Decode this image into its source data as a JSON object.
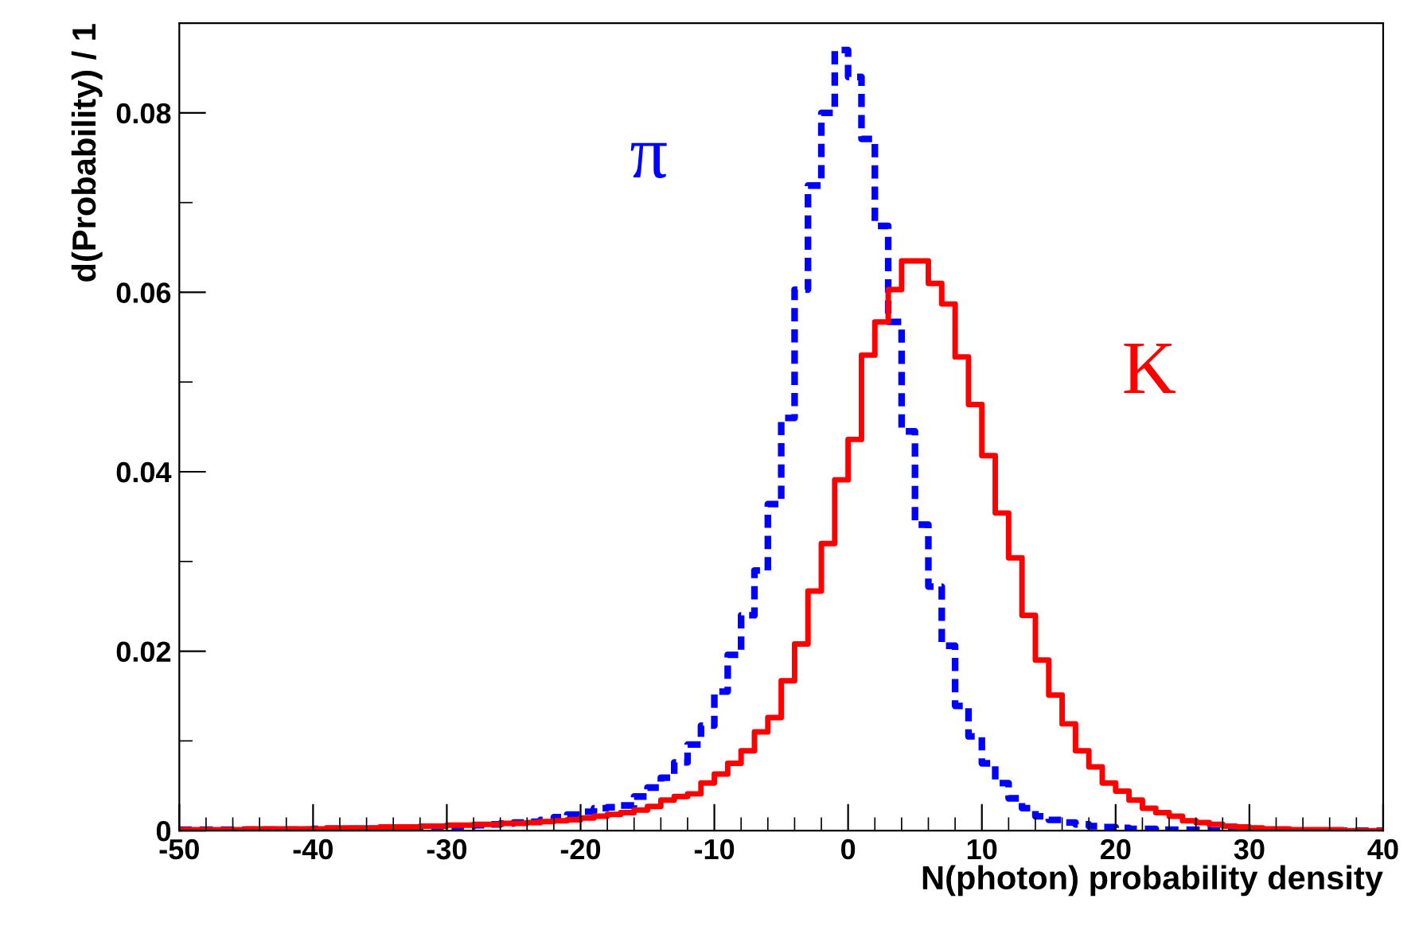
{
  "chart_data": {
    "type": "histogram",
    "xlabel": "N(photon) probability density",
    "ylabel": "d(Probability) / 1",
    "bins": [
      -50,
      -49,
      -48,
      -47,
      -46,
      -45,
      -44,
      -43,
      -42,
      -41,
      -40,
      -39,
      -38,
      -37,
      -36,
      -35,
      -34,
      -33,
      -32,
      -31,
      -30,
      -29,
      -28,
      -27,
      -26,
      -25,
      -24,
      -23,
      -22,
      -21,
      -20,
      -19,
      -18,
      -17,
      -16,
      -15,
      -14,
      -13,
      -12,
      -11,
      -10,
      -9,
      -8,
      -7,
      -6,
      -5,
      -4,
      -3,
      -2,
      -1,
      0,
      1,
      2,
      3,
      4,
      5,
      6,
      7,
      8,
      9,
      10,
      11,
      12,
      13,
      14,
      15,
      16,
      17,
      18,
      19,
      20,
      21,
      22,
      23,
      24,
      25,
      26,
      27,
      28,
      29,
      30,
      31,
      32,
      33,
      34,
      35,
      36,
      37,
      38,
      39,
      40
    ],
    "series": [
      {
        "name": "π",
        "color": "#0000ff",
        "line_style": "dashed",
        "values": [
          0.0001,
          0.0001,
          0.0001,
          0.0001,
          0.0001,
          0.0001,
          0.0001,
          0.0001,
          0.0001,
          0.0001,
          0.0002,
          0.0002,
          0.0002,
          0.0002,
          0.0002,
          0.0002,
          0.0003,
          0.0003,
          0.0003,
          0.0004,
          0.0004,
          0.0005,
          0.0006,
          0.0007,
          0.0008,
          0.0009,
          0.001,
          0.0012,
          0.0015,
          0.0018,
          0.0021,
          0.0025,
          0.0026,
          0.0028,
          0.0038,
          0.0048,
          0.0059,
          0.0076,
          0.0096,
          0.0117,
          0.0155,
          0.0196,
          0.024,
          0.029,
          0.0364,
          0.046,
          0.0603,
          0.0719,
          0.08,
          0.087,
          0.084,
          0.0771,
          0.0674,
          0.0567,
          0.0445,
          0.0341,
          0.0272,
          0.0206,
          0.0139,
          0.0105,
          0.0075,
          0.0053,
          0.0036,
          0.0025,
          0.0016,
          0.0012,
          0.0009,
          0.0007,
          0.0005,
          0.0004,
          0.0003,
          0.0002,
          0.0002,
          0.0001,
          0.0001,
          0.0001,
          0.0001,
          0,
          0,
          0,
          0,
          0,
          0,
          0,
          0,
          0,
          0,
          0,
          0,
          0
        ]
      },
      {
        "name": "K",
        "color": "#ff0000",
        "line_style": "solid",
        "values": [
          0.0001,
          0.0001,
          0.0001,
          0.0001,
          0.0001,
          0.0002,
          0.0002,
          0.0002,
          0.0002,
          0.0002,
          0.0002,
          0.0003,
          0.0003,
          0.0003,
          0.0003,
          0.0004,
          0.0004,
          0.0004,
          0.0005,
          0.0005,
          0.0006,
          0.0006,
          0.0007,
          0.0007,
          0.0008,
          0.0008,
          0.0009,
          0.001,
          0.0011,
          0.0012,
          0.0014,
          0.0016,
          0.0018,
          0.002,
          0.0023,
          0.0027,
          0.0034,
          0.0038,
          0.0041,
          0.0053,
          0.0063,
          0.0075,
          0.0089,
          0.011,
          0.0126,
          0.0167,
          0.0208,
          0.0267,
          0.032,
          0.0391,
          0.0436,
          0.053,
          0.0567,
          0.0603,
          0.0635,
          0.0635,
          0.061,
          0.0587,
          0.0528,
          0.0475,
          0.0418,
          0.0354,
          0.0304,
          0.024,
          0.019,
          0.0151,
          0.0119,
          0.0089,
          0.0071,
          0.0053,
          0.0044,
          0.0034,
          0.0025,
          0.002,
          0.0016,
          0.0011,
          0.0009,
          0.0007,
          0.0005,
          0.0004,
          0.0003,
          0.0002,
          0.0002,
          0.0001,
          0.0001,
          0.0001,
          0.0001,
          0,
          0,
          0
        ]
      }
    ],
    "xlim": [
      -50,
      40
    ],
    "xticks": [
      -50,
      -40,
      -30,
      -20,
      -10,
      0,
      10,
      20,
      30,
      40
    ],
    "ylim": [
      0,
      0.09
    ],
    "yticks": [
      {
        "value": 0,
        "label": "0"
      },
      0.02,
      0.04,
      0.06,
      0.08
    ],
    "grid": false,
    "legend": false
  }
}
